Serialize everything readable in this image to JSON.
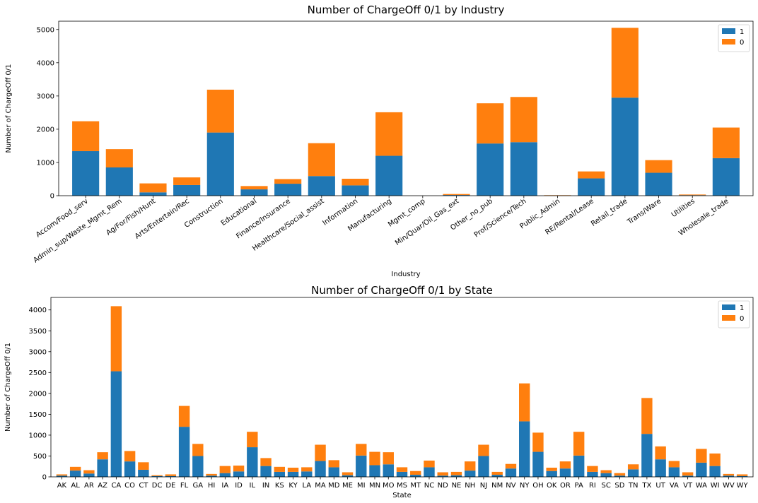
{
  "chart_data": [
    {
      "type": "bar",
      "stacked": true,
      "title": "Number of ChargeOff 0/1 by Industry",
      "xlabel": "Industry",
      "ylabel": "Number of ChargeOff 0/1",
      "ylim": [
        0,
        5250
      ],
      "yticks": [
        0,
        1000,
        2000,
        3000,
        4000,
        5000
      ],
      "legend_position": "top-right",
      "categories": [
        "Accom/Food_serv",
        "Admin_sup/Waste_Mgmt_Rem",
        "Ag/For/Fish/Hunt",
        "Arts/Entertain/Rec",
        "Construction",
        "Educational",
        "Finance/Insurance",
        "Healthcare/Social_assist",
        "Information",
        "Manufacturing",
        "Mgmt_comp",
        "Min/Quar/Oil_Gas_ext",
        "Other_no_pub",
        "Prof/Science/Tech",
        "Public_Admin",
        "RE/Rental/Lease",
        "Retail_trade",
        "Trans/Ware",
        "Utilities",
        "Wholesale_trade"
      ],
      "series": [
        {
          "name": "1",
          "color": "#1f77b4",
          "values": [
            1340,
            850,
            100,
            320,
            1900,
            190,
            360,
            590,
            310,
            1200,
            0,
            20,
            1570,
            1610,
            5,
            520,
            2950,
            690,
            15,
            1130
          ]
        },
        {
          "name": "0",
          "color": "#ff7f0e",
          "values": [
            900,
            550,
            270,
            230,
            1290,
            100,
            140,
            990,
            200,
            1310,
            0,
            30,
            1210,
            1360,
            10,
            210,
            2100,
            380,
            20,
            920
          ]
        }
      ]
    },
    {
      "type": "bar",
      "stacked": true,
      "title": "Number of ChargeOff 0/1 by State",
      "xlabel": "State",
      "ylabel": "Number of ChargeOff 0/1",
      "ylim": [
        0,
        4300
      ],
      "yticks": [
        0,
        500,
        1000,
        1500,
        2000,
        2500,
        3000,
        3500,
        4000
      ],
      "legend_position": "top-right",
      "categories": [
        "AK",
        "AL",
        "AR",
        "AZ",
        "CA",
        "CO",
        "CT",
        "DC",
        "DE",
        "FL",
        "GA",
        "HI",
        "IA",
        "ID",
        "IL",
        "IN",
        "KS",
        "KY",
        "LA",
        "MA",
        "MD",
        "ME",
        "MI",
        "MN",
        "MO",
        "MS",
        "MT",
        "NC",
        "ND",
        "NE",
        "NH",
        "NJ",
        "NM",
        "NV",
        "NY",
        "OH",
        "OK",
        "OR",
        "PA",
        "RI",
        "SC",
        "SD",
        "TN",
        "TX",
        "UT",
        "VA",
        "VT",
        "WA",
        "WI",
        "WV",
        "WY"
      ],
      "series": [
        {
          "name": "1",
          "color": "#1f77b4",
          "values": [
            30,
            150,
            80,
            420,
            2530,
            370,
            170,
            20,
            20,
            1200,
            500,
            30,
            90,
            130,
            710,
            260,
            120,
            120,
            130,
            380,
            230,
            40,
            510,
            280,
            300,
            120,
            50,
            230,
            30,
            40,
            150,
            500,
            50,
            200,
            1330,
            600,
            140,
            200,
            510,
            120,
            90,
            30,
            180,
            1030,
            420,
            230,
            30,
            340,
            260,
            30,
            20
          ]
        },
        {
          "name": "0",
          "color": "#ff7f0e",
          "values": [
            30,
            90,
            80,
            170,
            1560,
            250,
            180,
            20,
            40,
            500,
            290,
            40,
            170,
            140,
            370,
            190,
            120,
            100,
            100,
            390,
            170,
            70,
            280,
            320,
            290,
            110,
            90,
            160,
            80,
            80,
            220,
            270,
            70,
            110,
            910,
            460,
            80,
            170,
            570,
            140,
            70,
            60,
            120,
            860,
            310,
            150,
            80,
            330,
            300,
            40,
            40
          ]
        }
      ]
    }
  ]
}
